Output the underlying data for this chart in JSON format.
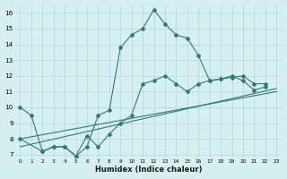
{
  "xlabel": "Humidex (Indice chaleur)",
  "bg_color": "#d6f0f0",
  "line_color": "#2e7d6e",
  "grid_color": "#b8d8d8",
  "xlim": [
    -0.5,
    23.5
  ],
  "ylim": [
    6.8,
    16.5
  ],
  "xticks": [
    0,
    1,
    2,
    3,
    4,
    5,
    6,
    7,
    8,
    9,
    10,
    11,
    12,
    13,
    14,
    15,
    16,
    17,
    18,
    19,
    20,
    21,
    22,
    23
  ],
  "yticks": [
    7,
    8,
    9,
    10,
    11,
    12,
    13,
    14,
    15,
    16
  ],
  "curve1_x": [
    0,
    1,
    2,
    3,
    4,
    5,
    6,
    7,
    8,
    9,
    10,
    11,
    12,
    13,
    14,
    15,
    16,
    17,
    18,
    19,
    20,
    21,
    22
  ],
  "curve1_y": [
    10,
    9.5,
    7.2,
    7.5,
    7.5,
    6.9,
    7.5,
    9.5,
    9.8,
    13.8,
    14.6,
    15.0,
    16.2,
    15.3,
    14.6,
    14.4,
    13.3,
    11.7,
    11.8,
    12.0,
    11.7,
    11.1,
    11.3
  ],
  "trend1_x": [
    0,
    23
  ],
  "trend1_y": [
    7.5,
    11.2
  ],
  "trend2_x": [
    0,
    23
  ],
  "trend2_y": [
    8.0,
    11.0
  ],
  "curve2_x": [
    0,
    2,
    3,
    4,
    5,
    6,
    7,
    8,
    9,
    10,
    11,
    12,
    13,
    14,
    15,
    16,
    17,
    18,
    19,
    20,
    21,
    22
  ],
  "curve2_y": [
    8.0,
    7.2,
    7.5,
    7.5,
    6.9,
    8.2,
    7.5,
    8.3,
    9.0,
    9.5,
    11.5,
    11.7,
    12.0,
    11.5,
    11.0,
    11.5,
    11.7,
    11.8,
    11.9,
    12.0,
    11.5,
    11.5
  ]
}
